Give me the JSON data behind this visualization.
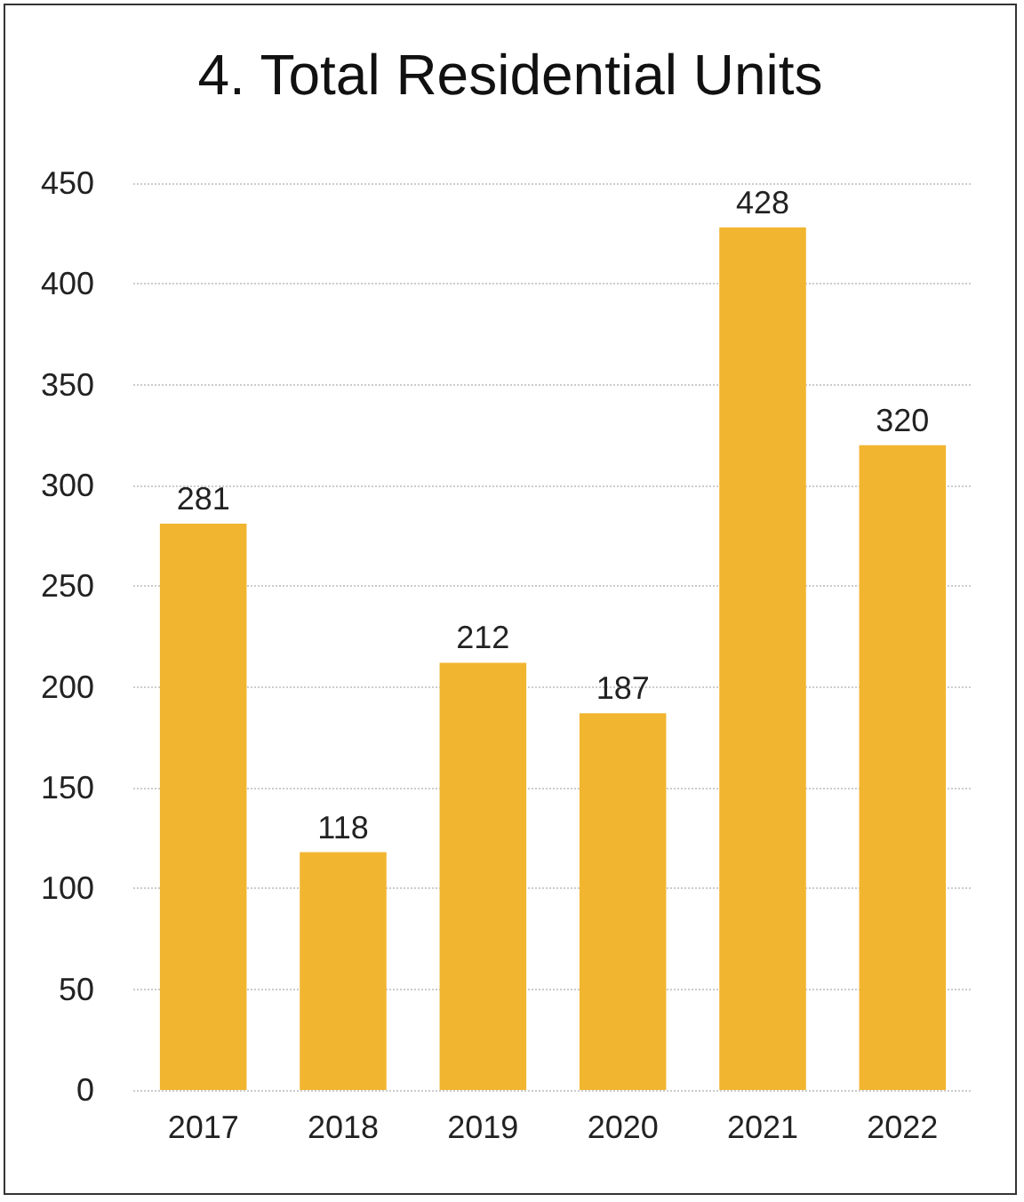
{
  "chart_data": {
    "type": "bar",
    "title": "4. Total Residential Units",
    "categories": [
      "2017",
      "2018",
      "2019",
      "2020",
      "2021",
      "2022"
    ],
    "values": [
      281,
      118,
      212,
      187,
      428,
      320
    ],
    "color": "#f2b530",
    "ylim": [
      0,
      450
    ],
    "yticks": [
      0,
      50,
      100,
      150,
      200,
      250,
      300,
      350,
      400,
      450
    ],
    "grid": "y",
    "data_labels": true
  }
}
